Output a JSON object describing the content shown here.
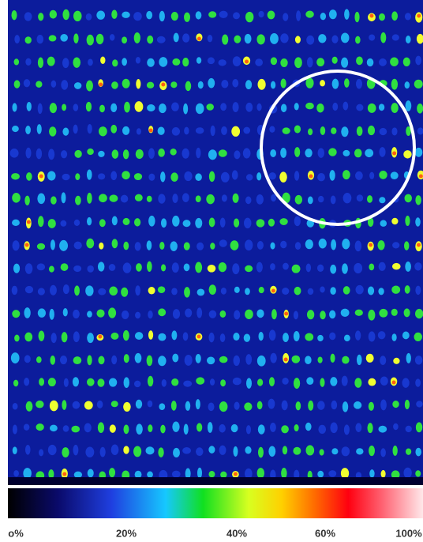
{
  "colorbar": {
    "labels": [
      "o%",
      "20%",
      "40%",
      "60%",
      "100%"
    ]
  }
}
